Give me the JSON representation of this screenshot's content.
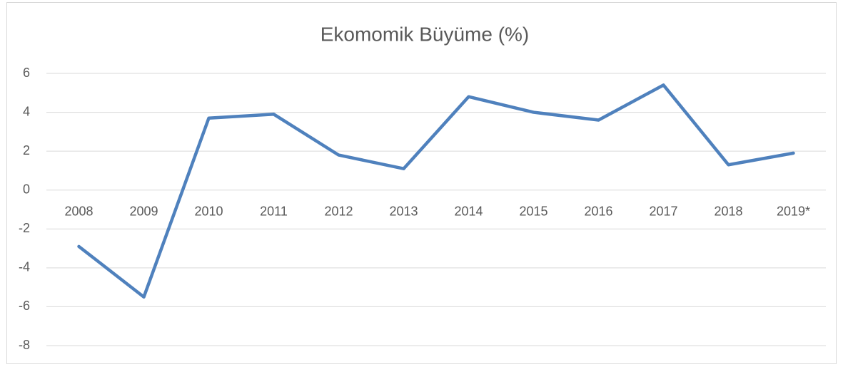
{
  "chart_data": {
    "type": "line",
    "title": "Ekomomik Büyüme (%)",
    "categories": [
      "2008",
      "2009",
      "2010",
      "2011",
      "2012",
      "2013",
      "2014",
      "2015",
      "2016",
      "2017",
      "2018",
      "2019*"
    ],
    "series": [
      {
        "name": "Ekomomik Büyüme (%)",
        "color": "#4f81bd",
        "values": [
          -2.9,
          -5.5,
          3.7,
          3.9,
          1.8,
          1.1,
          4.8,
          4.0,
          3.6,
          5.4,
          1.3,
          1.9
        ]
      }
    ],
    "ylim": [
      -8,
      6
    ],
    "yticks": [
      -8,
      -6,
      -4,
      -2,
      0,
      2,
      4,
      6
    ],
    "grid": true
  }
}
